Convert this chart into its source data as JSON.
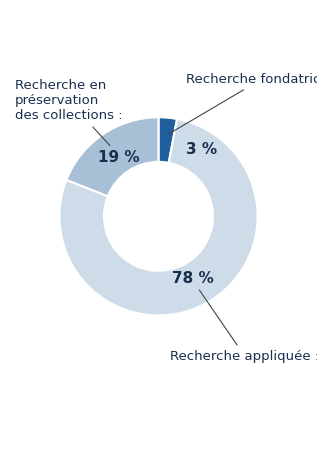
{
  "plot_sizes": [
    3,
    78,
    19
  ],
  "plot_colors": [
    "#1f5f9e",
    "#cddce8",
    "#a8c0d6"
  ],
  "wedge_edge_color": "#ffffff",
  "wedge_linewidth": 1.5,
  "donut_width": 0.45,
  "bg_color": "#ffffff",
  "text_color": "#1a2e50",
  "pct_fontsize": 11,
  "label_fontsize": 9.5,
  "labels": [
    "Recherche fondatrice :",
    "Recherche appliquée :",
    "Recherche en\npréservation\ndes collections :"
  ],
  "percentages": [
    "3 %",
    "78 %",
    "19 %"
  ],
  "figsize": [
    3.17,
    4.61
  ],
  "dpi": 100
}
